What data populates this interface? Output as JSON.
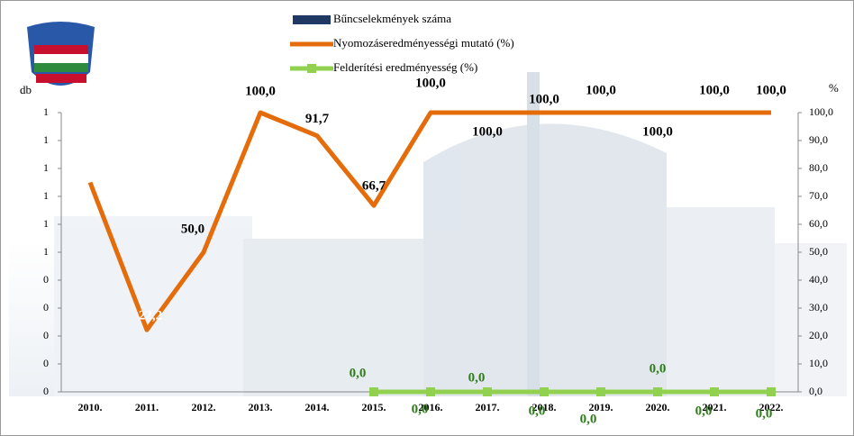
{
  "chart_data": {
    "type": "line",
    "categories": [
      "2010.",
      "2011.",
      "2012.",
      "2013.",
      "2014.",
      "2015.",
      "2016.",
      "2017.",
      "2018.",
      "2019.",
      "2020.",
      "2021.",
      "2022."
    ],
    "ylabel": "db",
    "y2label": "%",
    "ylim": [
      0,
      1
    ],
    "yticks": [
      0,
      {
        "value": 0.1,
        "label": "0"
      },
      {
        "value": 0.2,
        "label": "0"
      },
      {
        "value": 0.3,
        "label": "0"
      },
      {
        "value": 0.4,
        "label": "0"
      },
      {
        "value": 0.5,
        "label": "1"
      },
      {
        "value": 0.6,
        "label": "1"
      },
      {
        "value": 0.7,
        "label": "1"
      },
      {
        "value": 0.8,
        "label": "1"
      },
      {
        "value": 0.9,
        "label": "1"
      },
      1
    ],
    "y2lim": [
      0,
      100
    ],
    "y2ticks": [
      {
        "value": 0,
        "label": "0,0"
      },
      {
        "value": 10,
        "label": "10,0"
      },
      {
        "value": 20,
        "label": "20,0"
      },
      {
        "value": 30,
        "label": "30,0"
      },
      {
        "value": 40,
        "label": "40,0"
      },
      {
        "value": 50,
        "label": "50,0"
      },
      {
        "value": 60,
        "label": "60,0"
      },
      {
        "value": 70,
        "label": "70,0"
      },
      {
        "value": 80,
        "label": "80,0"
      },
      {
        "value": 90,
        "label": "90,0"
      },
      {
        "value": 100,
        "label": "100,0"
      }
    ],
    "series": [
      {
        "name": "Bűncselekmények száma",
        "color": "#1f3864",
        "type": "bar",
        "values": [
          null,
          null,
          null,
          null,
          null,
          null,
          null,
          null,
          null,
          null,
          null,
          null,
          null
        ]
      },
      {
        "name": "Nyomozáseredményességi mutató (%)",
        "color": "#e46c0a",
        "axis": "y2",
        "values": [
          75,
          22.2,
          50,
          100,
          91.7,
          66.7,
          100,
          100,
          100,
          100,
          100,
          100,
          100
        ],
        "value_labels": [
          null,
          "22,2",
          "50,0",
          "100,0",
          "91,7",
          "66,7",
          "100,0",
          "100,0",
          "100,0",
          "100,0",
          "100,0",
          "100,0",
          "100,0"
        ]
      },
      {
        "name": "Felderítési eredményesség (%)",
        "color": "#92d050",
        "axis": "y2",
        "values": [
          null,
          null,
          null,
          null,
          null,
          0,
          0,
          0,
          0,
          0,
          0,
          0,
          0
        ],
        "value_labels": [
          null,
          null,
          null,
          null,
          null,
          "0,0",
          "0,0",
          "0,0",
          "0,0",
          "0,0",
          "0,0",
          "0,0",
          "0,0"
        ]
      }
    ]
  }
}
